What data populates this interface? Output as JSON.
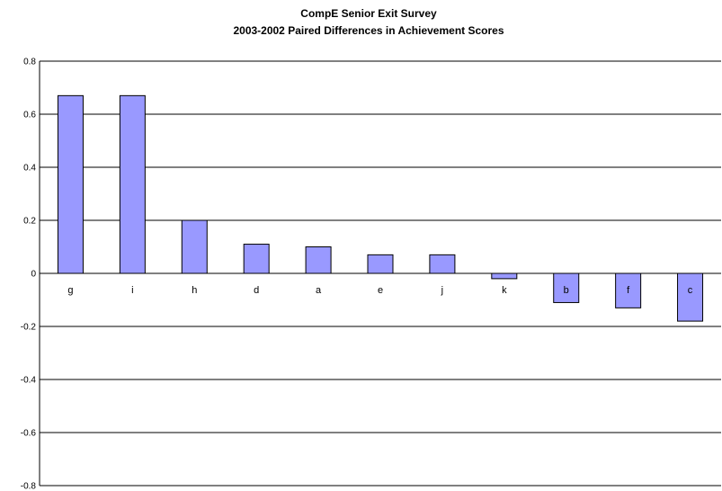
{
  "chart_data": {
    "type": "bar",
    "title": "CompE Senior Exit Survey",
    "subtitle": "2003-2002 Paired Differences in Achievement Scores",
    "categories": [
      "g",
      "i",
      "h",
      "d",
      "a",
      "e",
      "j",
      "k",
      "b",
      "f",
      "c"
    ],
    "values": [
      0.67,
      0.67,
      0.2,
      0.11,
      0.1,
      0.07,
      0.07,
      -0.02,
      -0.11,
      -0.13,
      -0.18
    ],
    "ylim": [
      -0.8,
      0.8
    ],
    "yticks": [
      "0.8",
      "0.6",
      "0.4",
      "0.2",
      "0",
      "-0.2",
      "-0.4",
      "-0.6",
      "-0.8"
    ],
    "grid": true,
    "legend": "none",
    "colors": {
      "bar": "#9999ff",
      "bar_edge": "#000000",
      "grid": "#000000"
    }
  }
}
